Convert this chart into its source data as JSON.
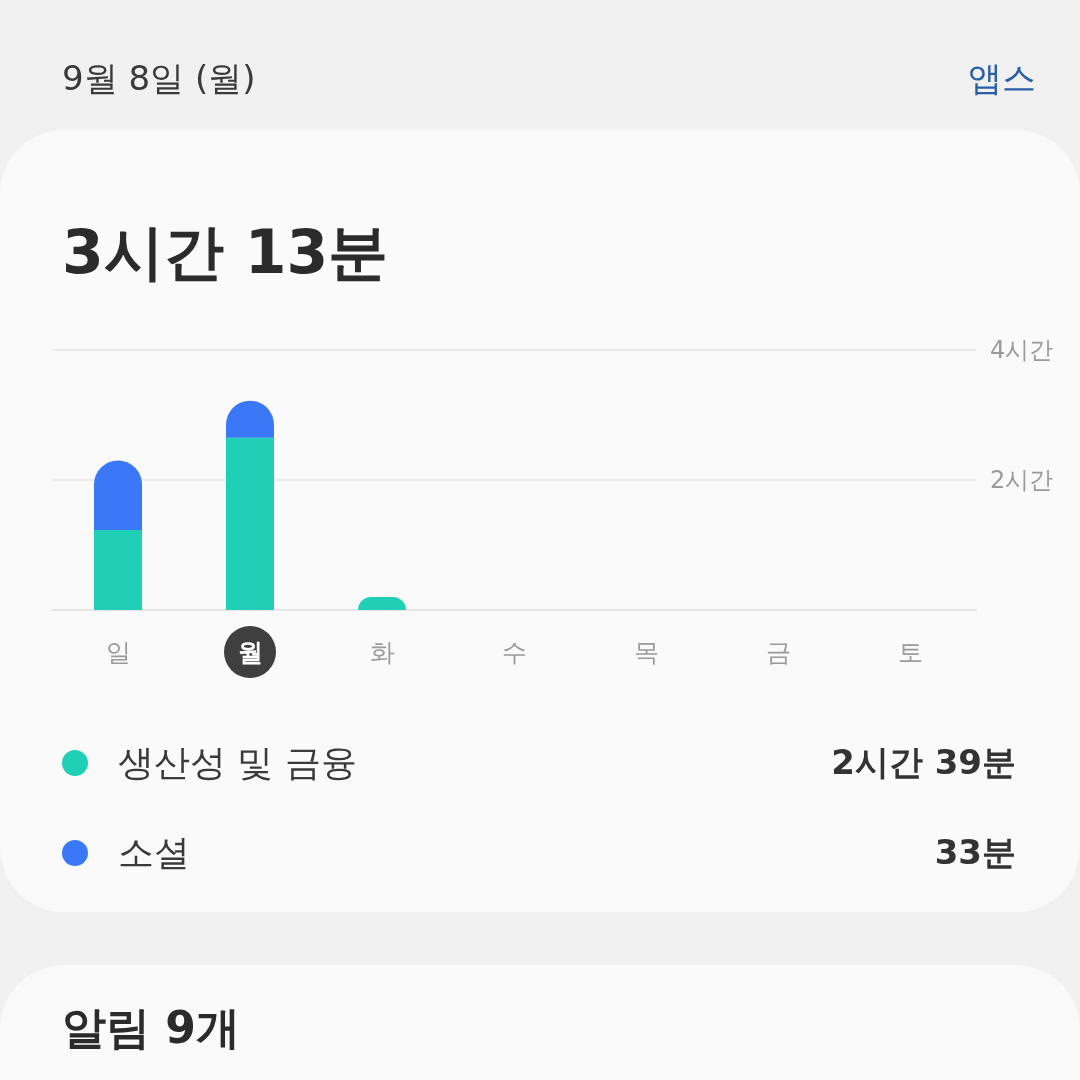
{
  "chart_data": {
    "type": "bar",
    "stacked": true,
    "title": "3시간 13분",
    "subtitle": "9월 8일 (월)",
    "categories": [
      "일",
      "월",
      "화",
      "수",
      "목",
      "금",
      "토"
    ],
    "series": [
      {
        "name": "생산성 및 금융",
        "color": "#1fcfb6",
        "values": [
          1.23,
          2.65,
          0.2,
          null,
          null,
          null,
          null
        ]
      },
      {
        "name": "소셜",
        "color": "#3a78f7",
        "values": [
          1.07,
          0.57,
          null,
          null,
          null,
          null,
          null
        ]
      }
    ],
    "ylim": [
      0,
      4
    ],
    "yticks": [
      {
        "value": 0,
        "label": null
      },
      {
        "value": 2,
        "label": "2시간"
      },
      {
        "value": 4,
        "label": "4시간"
      }
    ],
    "grid": "y",
    "legend": "bottom",
    "annotations": [
      "앱스",
      "2시간 39분",
      "33분",
      "알림 9개"
    ]
  }
}
